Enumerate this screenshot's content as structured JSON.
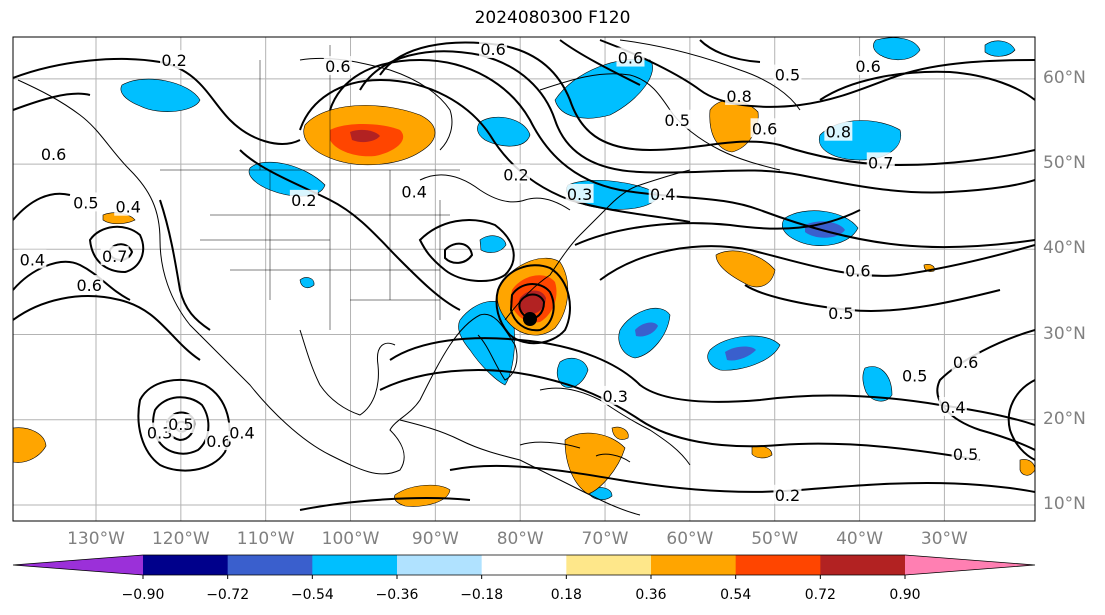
{
  "title": "2024080300 F120",
  "lat_labels": [
    {
      "text": "60°N",
      "lat": 60
    },
    {
      "text": "50°N",
      "lat": 50
    },
    {
      "text": "40°N",
      "lat": 40
    },
    {
      "text": "30°N",
      "lat": 30
    },
    {
      "text": "20°N",
      "lat": 20
    },
    {
      "text": "10°N",
      "lat": 10
    }
  ],
  "lon_labels": [
    {
      "text": "130°W",
      "lon": -130
    },
    {
      "text": "120°W",
      "lon": -120
    },
    {
      "text": "110°W",
      "lon": -110
    },
    {
      "text": "100°W",
      "lon": -100
    },
    {
      "text": "90°W",
      "lon": -90
    },
    {
      "text": "80°W",
      "lon": -80
    },
    {
      "text": "70°W",
      "lon": -70
    },
    {
      "text": "60°W",
      "lon": -60
    },
    {
      "text": "50°W",
      "lon": -50
    },
    {
      "text": "40°W",
      "lon": -40
    },
    {
      "text": "30°W",
      "lon": -30
    }
  ],
  "colorbar": {
    "ticks": [
      "−0.90",
      "−0.72",
      "−0.54",
      "−0.36",
      "−0.18",
      "0.18",
      "0.36",
      "0.54",
      "0.72",
      "0.90"
    ],
    "colors": [
      "#9b30d9",
      "#00008b",
      "#3a5fcd",
      "#00bfff",
      "#b0e2ff",
      "#ffffff",
      "#fee78a",
      "#ffa500",
      "#ff4500",
      "#b22222",
      "#ff7fb2"
    ]
  },
  "contour_labels": [
    {
      "text": "0.2",
      "lon": -120.8,
      "lat": 62.2
    },
    {
      "text": "0.6",
      "lon": -101.5,
      "lat": 61.5
    },
    {
      "text": "0.6",
      "lon": -83.2,
      "lat": 63.5
    },
    {
      "text": "0.6",
      "lon": -67,
      "lat": 62.5
    },
    {
      "text": "0.5",
      "lon": -48.5,
      "lat": 60.5
    },
    {
      "text": "0.6",
      "lon": -39,
      "lat": 61.5
    },
    {
      "text": "0.8",
      "lon": -54.2,
      "lat": 58
    },
    {
      "text": "0.5",
      "lon": -61.5,
      "lat": 55.2
    },
    {
      "text": "0.6",
      "lon": -51.2,
      "lat": 54.2
    },
    {
      "text": "0.8",
      "lon": -42.5,
      "lat": 53.8
    },
    {
      "text": "0.7",
      "lon": -37.5,
      "lat": 50.2
    },
    {
      "text": "0.6",
      "lon": -135,
      "lat": 51.2
    },
    {
      "text": "0.5",
      "lon": -131.2,
      "lat": 45.5
    },
    {
      "text": "0.4",
      "lon": -126.2,
      "lat": 45
    },
    {
      "text": "0.4",
      "lon": -137.5,
      "lat": 38.8
    },
    {
      "text": "0.7",
      "lon": -127.8,
      "lat": 39.2
    },
    {
      "text": "0.6",
      "lon": -130.8,
      "lat": 35.8
    },
    {
      "text": "0.2",
      "lon": -105.5,
      "lat": 45.8
    },
    {
      "text": "0.4",
      "lon": -92.5,
      "lat": 46.8
    },
    {
      "text": "0.2",
      "lon": -80.5,
      "lat": 48.8
    },
    {
      "text": "0.3",
      "lon": -73,
      "lat": 46.5
    },
    {
      "text": "0.4",
      "lon": -63.2,
      "lat": 46.5
    },
    {
      "text": "0.6",
      "lon": -40.2,
      "lat": 37.5
    },
    {
      "text": "0.5",
      "lon": -42.2,
      "lat": 32.5
    },
    {
      "text": "0.5",
      "lon": -33.5,
      "lat": 25.2
    },
    {
      "text": "0.6",
      "lon": -27.5,
      "lat": 26.8
    },
    {
      "text": "0.4",
      "lon": -29,
      "lat": 21.5
    },
    {
      "text": "0.5",
      "lon": -27.5,
      "lat": 16
    },
    {
      "text": "0.3",
      "lon": -68.8,
      "lat": 22.8
    },
    {
      "text": "0.3",
      "lon": -122.5,
      "lat": 18.5
    },
    {
      "text": "0.5",
      "lon": -120,
      "lat": 19.5
    },
    {
      "text": "0.6",
      "lon": -115.5,
      "lat": 17.5
    },
    {
      "text": "0.4",
      "lon": -112.8,
      "lat": 18.5
    },
    {
      "text": "0.2",
      "lon": -48.5,
      "lat": 11.2
    }
  ]
}
